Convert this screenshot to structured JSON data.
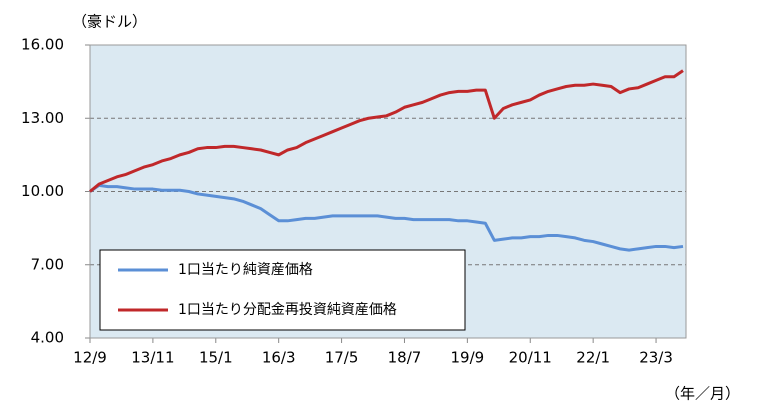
{
  "chart_data": {
    "type": "line",
    "y_label": "（豪ドル）",
    "x_label": "（年／月）",
    "categories": [
      "12/9",
      null,
      null,
      null,
      null,
      null,
      null,
      "13/11",
      null,
      null,
      null,
      null,
      null,
      null,
      "15/1",
      null,
      null,
      null,
      null,
      null,
      null,
      "16/3",
      null,
      null,
      null,
      null,
      null,
      null,
      "17/5",
      null,
      null,
      null,
      null,
      null,
      null,
      "18/7",
      null,
      null,
      null,
      null,
      null,
      null,
      "19/9",
      null,
      null,
      null,
      null,
      null,
      null,
      "20/11",
      null,
      null,
      null,
      null,
      null,
      null,
      "22/1",
      null,
      null,
      null,
      null,
      null,
      null,
      "23/3",
      null,
      null,
      null
    ],
    "series": [
      {
        "name": "1口当たり純資産価格",
        "color": "#5b8fd6",
        "values": [
          10.0,
          10.25,
          10.2,
          10.2,
          10.15,
          10.1,
          10.1,
          10.1,
          10.05,
          10.05,
          10.05,
          10.0,
          9.9,
          9.85,
          9.8,
          9.75,
          9.7,
          9.6,
          9.45,
          9.3,
          9.05,
          8.8,
          8.8,
          8.85,
          8.9,
          8.9,
          8.95,
          9.0,
          9.0,
          9.0,
          9.0,
          9.0,
          9.0,
          8.95,
          8.9,
          8.9,
          8.85,
          8.85,
          8.85,
          8.85,
          8.85,
          8.8,
          8.8,
          8.75,
          8.7,
          8.0,
          8.05,
          8.1,
          8.1,
          8.15,
          8.15,
          8.2,
          8.2,
          8.15,
          8.1,
          8.0,
          7.95,
          7.85,
          7.75,
          7.65,
          7.6,
          7.65,
          7.7,
          7.75,
          7.75,
          7.7,
          7.75
        ]
      },
      {
        "name": "1口当たり分配金再投資純資産価格",
        "color": "#c0282a",
        "values": [
          10.0,
          10.3,
          10.45,
          10.6,
          10.7,
          10.85,
          11.0,
          11.1,
          11.25,
          11.35,
          11.5,
          11.6,
          11.75,
          11.8,
          11.8,
          11.85,
          11.85,
          11.8,
          11.75,
          11.7,
          11.6,
          11.5,
          11.7,
          11.8,
          12.0,
          12.15,
          12.3,
          12.45,
          12.6,
          12.75,
          12.9,
          13.0,
          13.05,
          13.1,
          13.25,
          13.45,
          13.55,
          13.65,
          13.8,
          13.95,
          14.05,
          14.1,
          14.1,
          14.15,
          14.15,
          13.0,
          13.4,
          13.55,
          13.65,
          13.75,
          13.95,
          14.1,
          14.2,
          14.3,
          14.35,
          14.35,
          14.4,
          14.35,
          14.3,
          14.05,
          14.2,
          14.25,
          14.4,
          14.55,
          14.7,
          14.7,
          14.95
        ]
      }
    ],
    "ylim": [
      4,
      16
    ],
    "yticks": [
      {
        "value": 4,
        "label": "4.00"
      },
      {
        "value": 7,
        "label": "7.00"
      },
      {
        "value": 10,
        "label": "10.00"
      },
      {
        "value": 13,
        "label": "13.00"
      },
      {
        "value": 16,
        "label": "16.00"
      }
    ],
    "grid": true,
    "legend": "lower left",
    "background": "#dbe9f2"
  }
}
